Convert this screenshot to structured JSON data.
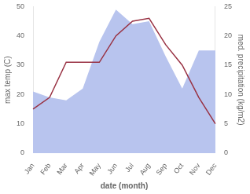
{
  "chart_data": {
    "type": "line",
    "xlabel": "date (month)",
    "ylabel": "max temp (C)",
    "y2label": "med. precipitation (kg/m2)",
    "categories": [
      "Jan",
      "Feb",
      "Mar",
      "Apr",
      "May",
      "Jun",
      "Jul",
      "Aug",
      "Sep",
      "Oct",
      "Nov",
      "Dec"
    ],
    "series": [
      {
        "type": "area",
        "axis": "y2",
        "color": "#b8c4ee",
        "values": [
          10.5,
          9.5,
          9.0,
          11.0,
          19.0,
          24.5,
          22.0,
          22.5,
          16.5,
          11.0,
          17.5,
          17.5
        ]
      },
      {
        "type": "line",
        "color": "#993344",
        "values": [
          15,
          19,
          31,
          31,
          31,
          40,
          45,
          46,
          37,
          30,
          19,
          10
        ]
      }
    ],
    "ylim": [
      0,
      50
    ],
    "yticks": [
      0,
      10,
      20,
      30,
      40,
      50
    ],
    "y2lim": [
      0,
      25
    ],
    "y2ticks": [
      0,
      5,
      10,
      15,
      20,
      25
    ],
    "grid": false,
    "legend": false
  }
}
